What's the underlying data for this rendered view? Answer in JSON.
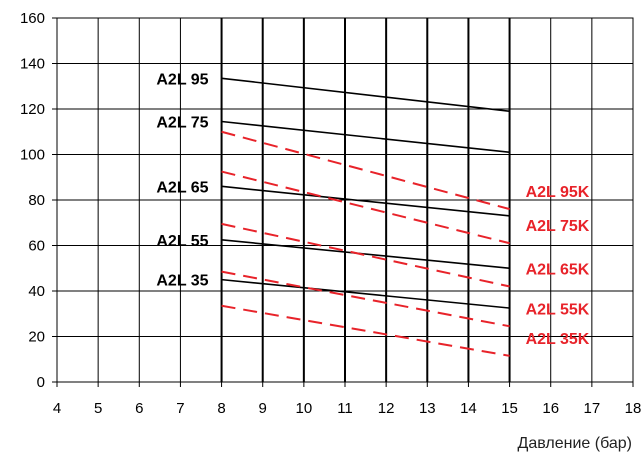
{
  "chart_data": {
    "type": "line",
    "title": "",
    "xlabel": "Давление (бар)",
    "ylabel": "",
    "xlim": [
      4,
      18
    ],
    "ylim": [
      0,
      160
    ],
    "x_ticks": [
      4,
      5,
      6,
      7,
      8,
      9,
      10,
      11,
      12,
      13,
      14,
      15,
      16,
      17,
      18
    ],
    "y_ticks": [
      0,
      20,
      40,
      60,
      80,
      100,
      120,
      140,
      160
    ],
    "grid": true,
    "colors": {
      "solid": "#000000",
      "dashed": "#e8232a",
      "grid": "#000000"
    },
    "series": [
      {
        "name": "A2L 95",
        "style": "solid",
        "x": [
          8,
          15
        ],
        "y": [
          133.5,
          119
        ]
      },
      {
        "name": "A2L 75",
        "style": "solid",
        "x": [
          8,
          15
        ],
        "y": [
          114.5,
          101
        ]
      },
      {
        "name": "A2L 65",
        "style": "solid",
        "x": [
          8,
          15
        ],
        "y": [
          86,
          73
        ]
      },
      {
        "name": "A2L 55",
        "style": "solid",
        "x": [
          8,
          15
        ],
        "y": [
          62.5,
          50
        ]
      },
      {
        "name": "A2L 35",
        "style": "solid",
        "x": [
          8,
          15
        ],
        "y": [
          45,
          32.5
        ]
      },
      {
        "name": "A2L 95K",
        "style": "dashed",
        "x": [
          8,
          15
        ],
        "y": [
          110,
          76
        ]
      },
      {
        "name": "A2L 75K",
        "style": "dashed",
        "x": [
          8,
          15
        ],
        "y": [
          92.5,
          61
        ]
      },
      {
        "name": "A2L 65K",
        "style": "dashed",
        "x": [
          8,
          15
        ],
        "y": [
          69.5,
          42
        ]
      },
      {
        "name": "A2L 55K",
        "style": "dashed",
        "x": [
          8,
          15
        ],
        "y": [
          48.5,
          24.5
        ]
      },
      {
        "name": "A2L 35K",
        "style": "dashed",
        "x": [
          8,
          15
        ],
        "y": [
          33.5,
          11.5
        ]
      }
    ]
  }
}
